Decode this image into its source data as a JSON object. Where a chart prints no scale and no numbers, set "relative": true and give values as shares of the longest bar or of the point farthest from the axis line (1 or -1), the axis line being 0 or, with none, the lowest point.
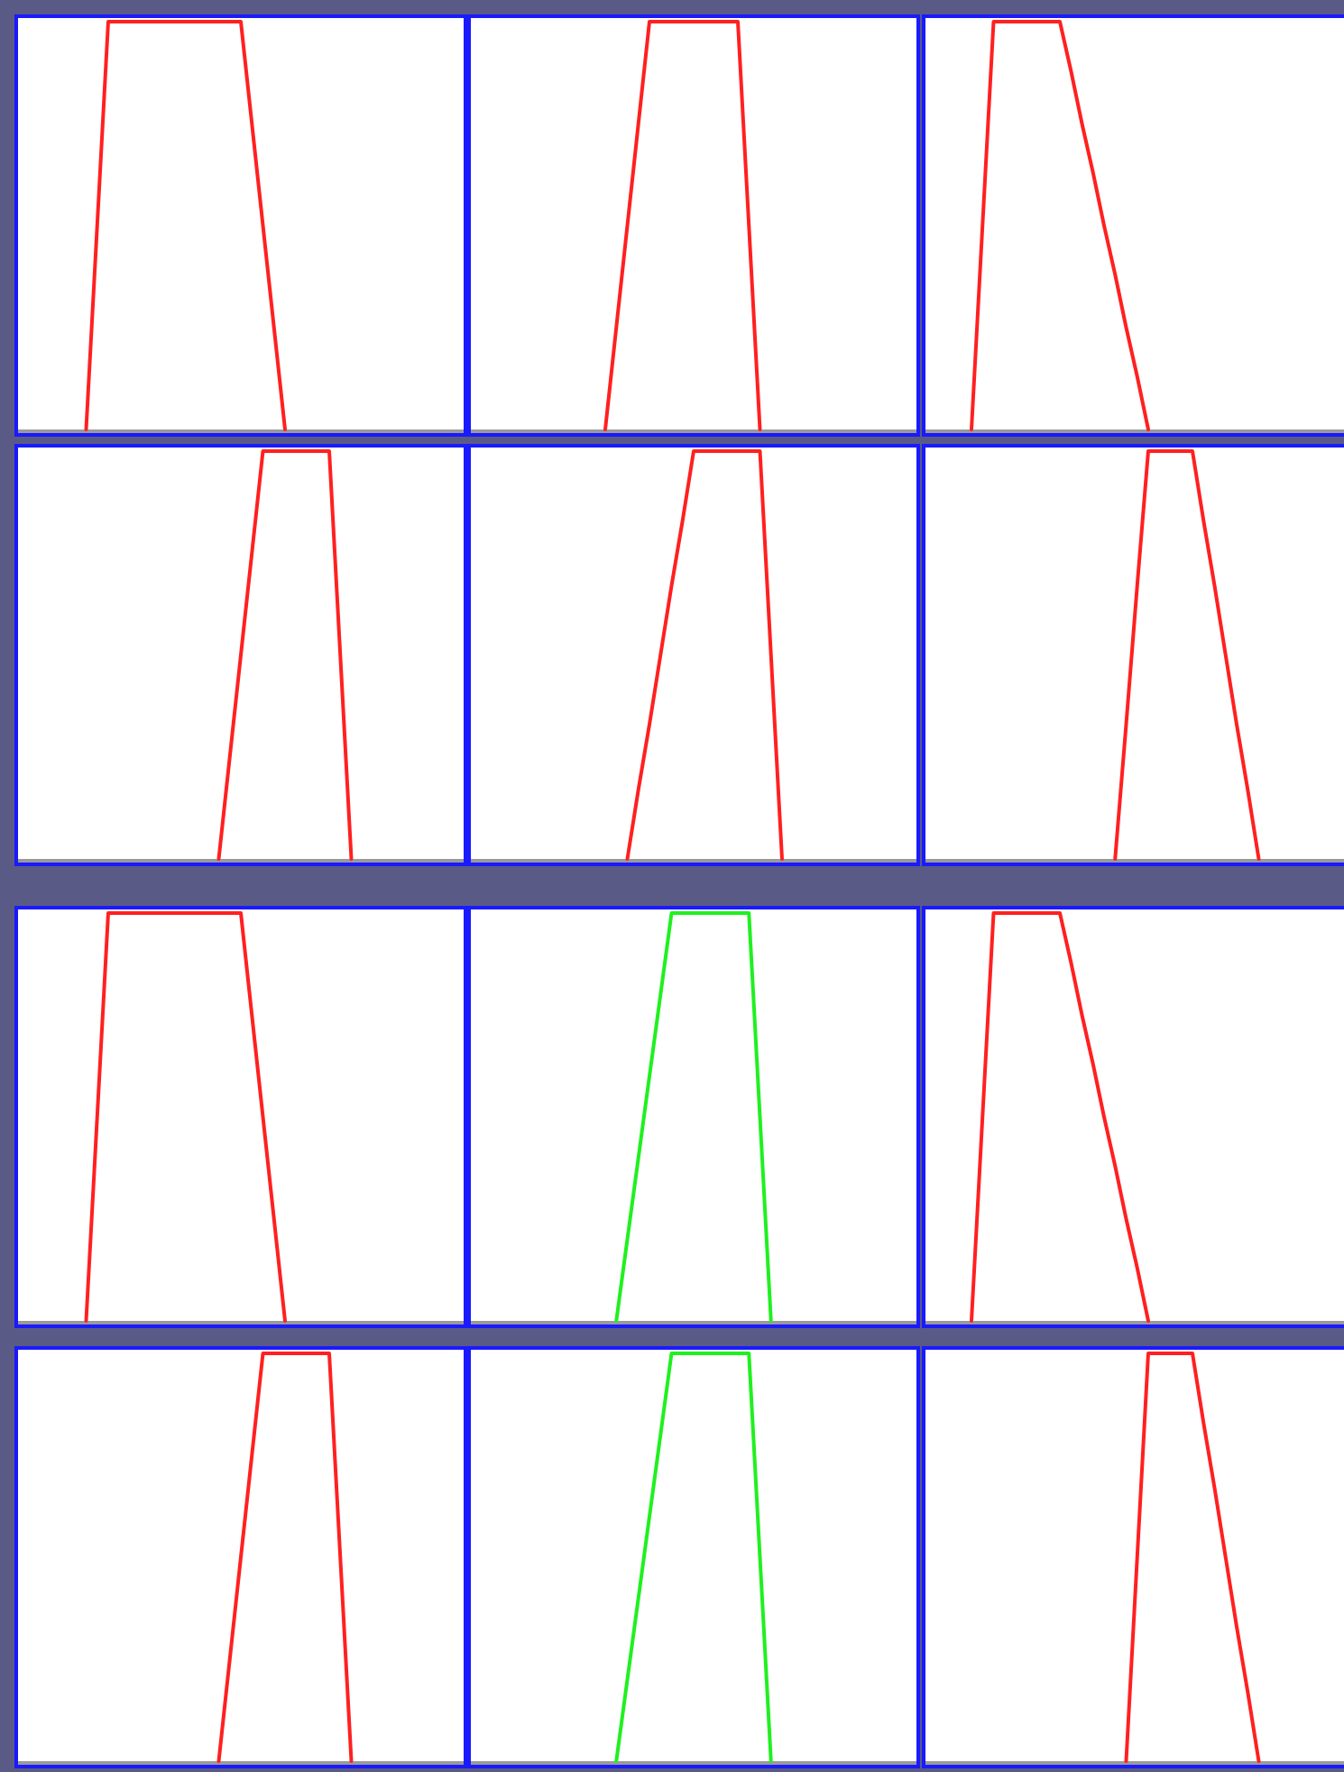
{
  "chart_data": [
    {
      "type": "line",
      "relative": true,
      "categories": [
        null,
        null,
        null,
        null,
        null,
        null,
        null,
        null,
        null,
        null,
        null,
        null,
        null,
        null,
        null,
        null,
        null,
        null,
        null,
        null,
        null,
        null,
        null,
        null,
        null,
        null,
        null,
        null,
        null,
        null,
        null,
        null,
        null,
        null,
        null,
        null,
        null,
        null,
        null,
        null,
        null
      ],
      "series": [
        {
          "color": "#ff2020",
          "values": [
            null,
            null,
            null,
            null,
            null,
            null,
            0,
            0.5,
            1,
            1,
            1,
            1,
            1,
            1,
            1,
            1,
            1,
            1,
            1,
            1,
            1,
            0.75,
            0.5,
            0.25,
            0,
            null,
            null,
            null,
            null,
            null,
            null,
            null,
            null,
            null,
            null,
            null,
            null,
            null,
            null,
            null,
            null
          ]
        }
      ]
    },
    {
      "type": "line",
      "relative": true,
      "categories": [
        null,
        null,
        null,
        null,
        null,
        null,
        null,
        null,
        null,
        null,
        null,
        null,
        null,
        null,
        null,
        null,
        null,
        null,
        null,
        null,
        null,
        null,
        null,
        null,
        null,
        null,
        null,
        null,
        null,
        null,
        null,
        null,
        null,
        null,
        null,
        null,
        null,
        null,
        null,
        null,
        null
      ],
      "series": [
        {
          "color": "#ff2020",
          "values": [
            null,
            null,
            null,
            null,
            null,
            null,
            null,
            null,
            null,
            null,
            null,
            null,
            0,
            0.25,
            0.5,
            0.75,
            1,
            1,
            1,
            1,
            1,
            1,
            1,
            1,
            1,
            0.5,
            0,
            null,
            null,
            null,
            null,
            null,
            null,
            null,
            null,
            null,
            null,
            null,
            null,
            null,
            null
          ]
        }
      ]
    },
    {
      "type": "line",
      "relative": true,
      "categories": [
        null,
        null,
        null,
        null,
        null,
        null,
        null,
        null,
        null,
        null,
        null,
        null,
        null,
        null,
        null,
        null,
        null,
        null,
        null,
        null,
        null,
        null,
        null,
        null,
        null,
        null,
        null,
        null,
        null,
        null,
        null,
        null,
        null,
        null,
        null,
        null,
        null,
        null,
        null,
        null,
        null
      ],
      "series": [
        {
          "color": "#ff2020",
          "values": [
            null,
            null,
            null,
            null,
            0,
            0.5,
            1,
            1,
            1,
            1,
            1,
            1,
            1,
            0.88,
            0.75,
            0.63,
            0.5,
            0.38,
            0.25,
            0.13,
            0,
            null,
            null,
            null,
            null,
            null,
            null,
            null,
            null,
            null,
            null,
            null,
            null,
            null,
            null,
            null,
            null,
            null,
            null,
            null,
            null
          ]
        }
      ]
    },
    {
      "type": "line",
      "relative": true,
      "categories": [
        null,
        null,
        null,
        null,
        null,
        null,
        null,
        null,
        null,
        null,
        null,
        null,
        null,
        null,
        null,
        null,
        null,
        null,
        null,
        null,
        null,
        null,
        null,
        null,
        null,
        null,
        null,
        null,
        null,
        null,
        null,
        null,
        null,
        null,
        null,
        null,
        null,
        null,
        null,
        null,
        null
      ],
      "series": [
        {
          "color": "#ff2020",
          "values": [
            null,
            null,
            null,
            null,
            null,
            null,
            null,
            null,
            null,
            null,
            null,
            null,
            null,
            null,
            null,
            null,
            null,
            null,
            0,
            0.25,
            0.5,
            0.75,
            1,
            1,
            1,
            1,
            1,
            1,
            1,
            0.5,
            0,
            null,
            null,
            null,
            null,
            null,
            null,
            null,
            null,
            null,
            null
          ]
        }
      ]
    },
    {
      "type": "line",
      "relative": true,
      "categories": [
        null,
        null,
        null,
        null,
        null,
        null,
        null,
        null,
        null,
        null,
        null,
        null,
        null,
        null,
        null,
        null,
        null,
        null,
        null,
        null,
        null,
        null,
        null,
        null,
        null,
        null,
        null,
        null,
        null,
        null,
        null,
        null,
        null,
        null,
        null,
        null,
        null,
        null,
        null,
        null,
        null
      ],
      "series": [
        {
          "color": "#ff2020",
          "values": [
            null,
            null,
            null,
            null,
            null,
            null,
            null,
            null,
            null,
            null,
            null,
            null,
            null,
            null,
            0,
            0.17,
            0.33,
            0.5,
            0.67,
            0.83,
            1,
            1,
            1,
            1,
            1,
            1,
            1,
            0.5,
            0,
            null,
            null,
            null,
            null,
            null,
            null,
            null,
            null,
            null,
            null,
            null,
            null
          ]
        }
      ]
    },
    {
      "type": "line",
      "relative": true,
      "categories": [
        null,
        null,
        null,
        null,
        null,
        null,
        null,
        null,
        null,
        null,
        null,
        null,
        null,
        null,
        null,
        null,
        null,
        null,
        null,
        null,
        null,
        null,
        null,
        null,
        null,
        null,
        null,
        null,
        null,
        null,
        null,
        null,
        null,
        null,
        null,
        null,
        null,
        null,
        null,
        null,
        null
      ],
      "series": [
        {
          "color": "#ff2020",
          "values": [
            null,
            null,
            null,
            null,
            null,
            null,
            null,
            null,
            null,
            null,
            null,
            null,
            null,
            null,
            null,
            null,
            null,
            0,
            0.33,
            0.67,
            1,
            1,
            1,
            1,
            1,
            0.83,
            0.67,
            0.5,
            0.33,
            0.17,
            0,
            null,
            null,
            null,
            null,
            null,
            null,
            null,
            null,
            null,
            null
          ]
        }
      ]
    },
    {
      "type": "line",
      "relative": true,
      "categories": [
        null,
        null,
        null,
        null,
        null,
        null,
        null,
        null,
        null,
        null,
        null,
        null,
        null,
        null,
        null,
        null,
        null,
        null,
        null,
        null,
        null,
        null,
        null,
        null,
        null,
        null,
        null,
        null,
        null,
        null,
        null,
        null,
        null,
        null,
        null,
        null,
        null,
        null,
        null,
        null,
        null
      ],
      "series": [
        {
          "color": "#ff2020",
          "values": [
            null,
            null,
            null,
            null,
            null,
            null,
            0,
            0.5,
            1,
            1,
            1,
            1,
            1,
            1,
            1,
            1,
            1,
            1,
            1,
            1,
            1,
            0.75,
            0.5,
            0.25,
            0,
            null,
            null,
            null,
            null,
            null,
            null,
            null,
            null,
            null,
            null,
            null,
            null,
            null,
            null,
            null,
            null
          ]
        }
      ]
    },
    {
      "type": "line",
      "relative": true,
      "categories": [
        null,
        null,
        null,
        null,
        null,
        null,
        null,
        null,
        null,
        null,
        null,
        null,
        null,
        null,
        null,
        null,
        null,
        null,
        null,
        null,
        null,
        null,
        null,
        null,
        null,
        null,
        null,
        null,
        null,
        null,
        null,
        null,
        null,
        null,
        null,
        null,
        null,
        null,
        null,
        null,
        null
      ],
      "series": [
        {
          "color": "#20f020",
          "values": [
            null,
            null,
            null,
            null,
            null,
            null,
            null,
            null,
            null,
            null,
            null,
            null,
            null,
            0,
            0.2,
            0.4,
            0.6,
            0.8,
            1,
            1,
            1,
            1,
            1,
            1,
            1,
            1,
            0.5,
            0,
            null,
            null,
            null,
            null,
            null,
            null,
            null,
            null,
            null,
            null,
            null,
            null,
            null
          ]
        }
      ]
    },
    {
      "type": "line",
      "relative": true,
      "categories": [
        null,
        null,
        null,
        null,
        null,
        null,
        null,
        null,
        null,
        null,
        null,
        null,
        null,
        null,
        null,
        null,
        null,
        null,
        null,
        null,
        null,
        null,
        null,
        null,
        null,
        null,
        null,
        null,
        null,
        null,
        null,
        null,
        null,
        null,
        null,
        null,
        null,
        null,
        null,
        null,
        null
      ],
      "series": [
        {
          "color": "#ff2020",
          "values": [
            null,
            null,
            null,
            null,
            0,
            0.5,
            1,
            1,
            1,
            1,
            1,
            1,
            1,
            0.88,
            0.75,
            0.63,
            0.5,
            0.38,
            0.25,
            0.13,
            0,
            null,
            null,
            null,
            null,
            null,
            null,
            null,
            null,
            null,
            null,
            null,
            null,
            null,
            null,
            null,
            null,
            null,
            null,
            null,
            null
          ]
        }
      ]
    },
    {
      "type": "line",
      "relative": true,
      "categories": [
        null,
        null,
        null,
        null,
        null,
        null,
        null,
        null,
        null,
        null,
        null,
        null,
        null,
        null,
        null,
        null,
        null,
        null,
        null,
        null,
        null,
        null,
        null,
        null,
        null,
        null,
        null,
        null,
        null,
        null,
        null,
        null,
        null,
        null,
        null,
        null,
        null,
        null,
        null,
        null,
        null
      ],
      "series": [
        {
          "color": "#ff2020",
          "values": [
            null,
            null,
            null,
            null,
            null,
            null,
            null,
            null,
            null,
            null,
            null,
            null,
            null,
            null,
            null,
            null,
            null,
            null,
            0,
            0.25,
            0.5,
            0.75,
            1,
            1,
            1,
            1,
            1,
            1,
            1,
            0.5,
            0,
            null,
            null,
            null,
            null,
            null,
            null,
            null,
            null,
            null,
            null
          ]
        }
      ]
    },
    {
      "type": "line",
      "relative": true,
      "categories": [
        null,
        null,
        null,
        null,
        null,
        null,
        null,
        null,
        null,
        null,
        null,
        null,
        null,
        null,
        null,
        null,
        null,
        null,
        null,
        null,
        null,
        null,
        null,
        null,
        null,
        null,
        null,
        null,
        null,
        null,
        null,
        null,
        null,
        null,
        null,
        null,
        null,
        null,
        null,
        null,
        null
      ],
      "series": [
        {
          "color": "#20f020",
          "values": [
            null,
            null,
            null,
            null,
            null,
            null,
            null,
            null,
            null,
            null,
            null,
            null,
            null,
            0,
            0.2,
            0.4,
            0.6,
            0.8,
            1,
            1,
            1,
            1,
            1,
            1,
            1,
            1,
            0.5,
            0,
            null,
            null,
            null,
            null,
            null,
            null,
            null,
            null,
            null,
            null,
            null,
            null,
            null
          ]
        }
      ]
    },
    {
      "type": "line",
      "relative": true,
      "categories": [
        null,
        null,
        null,
        null,
        null,
        null,
        null,
        null,
        null,
        null,
        null,
        null,
        null,
        null,
        null,
        null,
        null,
        null,
        null,
        null,
        null,
        null,
        null,
        null,
        null,
        null,
        null,
        null,
        null,
        null,
        null,
        null,
        null,
        null,
        null,
        null,
        null,
        null,
        null,
        null,
        null
      ],
      "series": [
        {
          "color": "#ff2020",
          "values": [
            null,
            null,
            null,
            null,
            null,
            null,
            null,
            null,
            null,
            null,
            null,
            null,
            null,
            null,
            null,
            null,
            null,
            null,
            0,
            0.5,
            1,
            1,
            1,
            1,
            1,
            0.83,
            0.67,
            0.5,
            0.33,
            0.17,
            0,
            null,
            null,
            null,
            null,
            null,
            null,
            null,
            null,
            null,
            null
          ]
        }
      ]
    }
  ]
}
